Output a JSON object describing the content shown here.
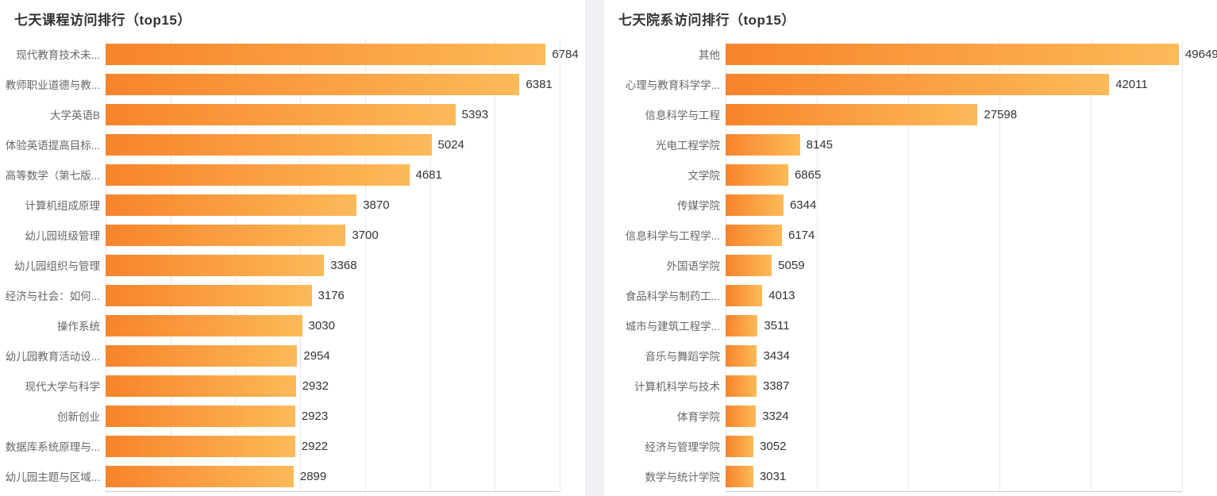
{
  "style": {
    "bar_gradient_start": "#f8832b",
    "bar_gradient_end": "#fcba58",
    "gridline_color": "#e9e9e9",
    "axis_line_color": "#cccccc",
    "title_color": "#333333",
    "category_label_color": "#666666",
    "value_label_color": "#333333",
    "card_background": "#ffffff",
    "page_background": "#eef0f3"
  },
  "chart_data": [
    {
      "type": "bar",
      "orientation": "horizontal",
      "title": "七天课程访问排行（top15）",
      "categories": [
        "现代教育技术未...",
        "教师职业道德与教...",
        "大学英语B",
        "体验英语提高目标...",
        "高等数学（第七版...",
        "计算机组成原理",
        "幼儿园班级管理",
        "幼儿园组织与管理",
        "经济与社会：如何...",
        "操作系统",
        "幼儿园教育活动设...",
        "现代大学与科学",
        "创新创业",
        "数据库系统原理与...",
        "幼儿园主题与区域..."
      ],
      "values": [
        6784,
        6381,
        5393,
        5024,
        4681,
        3870,
        3700,
        3368,
        3176,
        3030,
        2954,
        2932,
        2923,
        2922,
        2899
      ],
      "xlim": [
        0,
        7000
      ],
      "grid_interval": 1000,
      "grid": "vertical-lines-on",
      "value_labels": "right-of-bar",
      "legend": "none"
    },
    {
      "type": "bar",
      "orientation": "horizontal",
      "title": "七天院系访问排行（top15）",
      "categories": [
        "其他",
        "心理与教育科学学...",
        "信息科学与工程",
        "光电工程学院",
        "文学院",
        "传媒学院",
        "信息科学与工程学...",
        "外国语学院",
        "食品科学与制药工...",
        "城市与建筑工程学...",
        "音乐与舞蹈学院",
        "计算机科学与技术",
        "体育学院",
        "经济与管理学院",
        "数学与统计学院"
      ],
      "values": [
        49649,
        42011,
        27598,
        8145,
        6865,
        6344,
        6174,
        5059,
        4013,
        3511,
        3434,
        3387,
        3324,
        3052,
        3031
      ],
      "xlim": [
        0,
        50000
      ],
      "grid_interval": 10000,
      "grid": "vertical-lines-on",
      "value_labels": "right-of-bar",
      "legend": "none"
    }
  ]
}
